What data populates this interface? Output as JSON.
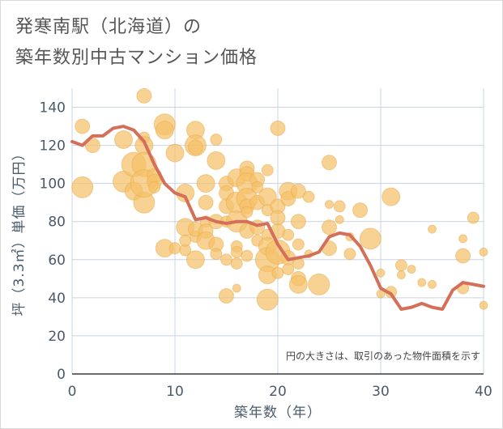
{
  "title_lines": [
    "発寒南駅（北海道）の",
    "築年数別中古マンション価格"
  ],
  "chart_data": {
    "type": "scatter",
    "xlabel": "築年数（年）",
    "ylabel": "坪（3.3㎡）単価（万円）",
    "xlim": [
      0,
      40
    ],
    "ylim": [
      0,
      150
    ],
    "xticks": [
      0,
      10,
      20,
      30,
      40
    ],
    "yticks": [
      0,
      20,
      40,
      60,
      80,
      100,
      120,
      140
    ],
    "grid": true,
    "annotation": "円の大きさは、取引のあった物件面積を示す",
    "colors": {
      "bubble": "#f5c06a",
      "bubble_edge": "#e6a94a",
      "line": "#d4705a",
      "axis_text": "#4a5a6a",
      "grid": "#c9d4e3"
    },
    "series": [
      {
        "kind": "bubbles",
        "points": [
          [
            1,
            130,
            9
          ],
          [
            1,
            98,
            13
          ],
          [
            2,
            120,
            9
          ],
          [
            5,
            123,
            11
          ],
          [
            5,
            101,
            13
          ],
          [
            6,
            110,
            15
          ],
          [
            6,
            96,
            11
          ],
          [
            7,
            146,
            9
          ],
          [
            7,
            124,
            7
          ],
          [
            7,
            120,
            11
          ],
          [
            7,
            110,
            15
          ],
          [
            7,
            90,
            13
          ],
          [
            7,
            100,
            17
          ],
          [
            8,
            104,
            9
          ],
          [
            8,
            101,
            9
          ],
          [
            8,
            98,
            7
          ],
          [
            9,
            131,
            13
          ],
          [
            9,
            128,
            11
          ],
          [
            9,
            66,
            11
          ],
          [
            10,
            116,
            11
          ],
          [
            10,
            66,
            7
          ],
          [
            11,
            95,
            11
          ],
          [
            11,
            77,
            11
          ],
          [
            11,
            65,
            7
          ],
          [
            11,
            70,
            7
          ],
          [
            12,
            128,
            11
          ],
          [
            12,
            120,
            13
          ],
          [
            12,
            119,
            9
          ],
          [
            12,
            60,
            11
          ],
          [
            12,
            72,
            7
          ],
          [
            12,
            76,
            9
          ],
          [
            13,
            100,
            11
          ],
          [
            13,
            90,
            9
          ],
          [
            13,
            80,
            7
          ],
          [
            13,
            75,
            9
          ],
          [
            13,
            70,
            11
          ],
          [
            14,
            123,
            7
          ],
          [
            14,
            112,
            11
          ],
          [
            14,
            80,
            9
          ],
          [
            14,
            68,
            9
          ],
          [
            14,
            63,
            7
          ],
          [
            15,
            100,
            9
          ],
          [
            15,
            95,
            9
          ],
          [
            15,
            88,
            9
          ],
          [
            15,
            80,
            7
          ],
          [
            15,
            60,
            7
          ],
          [
            15,
            41,
            9
          ],
          [
            16,
            103,
            11
          ],
          [
            16,
            90,
            13
          ],
          [
            16,
            80,
            13
          ],
          [
            16,
            67,
            7
          ],
          [
            16,
            64,
            7
          ],
          [
            16,
            58,
            7
          ],
          [
            16,
            45,
            5
          ],
          [
            17,
            108,
            9
          ],
          [
            17,
            105,
            9
          ],
          [
            17,
            100,
            13
          ],
          [
            17,
            92,
            13
          ],
          [
            17,
            88,
            9
          ],
          [
            17,
            85,
            7
          ],
          [
            17,
            75,
            9
          ],
          [
            17,
            62,
            7
          ],
          [
            18,
            102,
            9
          ],
          [
            18,
            98,
            7
          ],
          [
            18,
            90,
            9
          ],
          [
            18,
            77,
            9
          ],
          [
            18,
            70,
            7
          ],
          [
            19,
            107,
            7
          ],
          [
            19,
            93,
            11
          ],
          [
            19,
            86,
            7
          ],
          [
            19,
            73,
            7
          ],
          [
            19,
            67,
            11
          ],
          [
            19,
            60,
            15
          ],
          [
            19,
            52,
            11
          ],
          [
            19,
            39,
            13
          ],
          [
            20,
            129,
            9
          ],
          [
            20,
            88,
            9
          ],
          [
            20,
            82,
            9
          ],
          [
            20,
            75,
            9
          ],
          [
            20,
            64,
            15
          ],
          [
            20,
            53,
            7
          ],
          [
            21,
            96,
            11
          ],
          [
            21,
            92,
            9
          ],
          [
            21,
            73,
            7
          ],
          [
            21,
            61,
            9
          ],
          [
            21,
            55,
            7
          ],
          [
            22,
            96,
            9
          ],
          [
            22,
            80,
            9
          ],
          [
            22,
            68,
            7
          ],
          [
            22,
            58,
            7
          ],
          [
            22,
            50,
            9
          ],
          [
            22,
            47,
            11
          ],
          [
            23,
            93,
            7
          ],
          [
            23,
            63,
            5
          ],
          [
            24,
            47,
            13
          ],
          [
            25,
            111,
            9
          ],
          [
            25,
            89,
            5
          ],
          [
            25,
            66,
            9
          ],
          [
            25,
            77,
            9
          ],
          [
            26,
            88,
            7
          ],
          [
            26,
            81,
            5
          ],
          [
            27,
            63,
            7
          ],
          [
            27,
            72,
            5
          ],
          [
            28,
            86,
            9
          ],
          [
            29,
            71,
            13
          ],
          [
            30,
            42,
            5
          ],
          [
            30,
            53,
            5
          ],
          [
            31,
            93,
            11
          ],
          [
            31,
            43,
            7
          ],
          [
            32,
            57,
            7
          ],
          [
            32,
            52,
            5
          ],
          [
            33,
            55,
            5
          ],
          [
            34,
            48,
            5
          ],
          [
            35,
            76,
            5
          ],
          [
            35,
            47,
            5
          ],
          [
            38,
            71,
            5
          ],
          [
            38,
            62,
            9
          ],
          [
            38,
            45,
            7
          ],
          [
            39,
            82,
            7
          ],
          [
            40,
            64,
            5
          ],
          [
            40,
            36,
            5
          ]
        ]
      },
      {
        "kind": "line",
        "points": [
          [
            0,
            122
          ],
          [
            1,
            120
          ],
          [
            2,
            125
          ],
          [
            3,
            125
          ],
          [
            4,
            129
          ],
          [
            5,
            130
          ],
          [
            6,
            128
          ],
          [
            7,
            122
          ],
          [
            8,
            110
          ],
          [
            9,
            100
          ],
          [
            10,
            95
          ],
          [
            11,
            93
          ],
          [
            12,
            81
          ],
          [
            13,
            82
          ],
          [
            14,
            80
          ],
          [
            15,
            79
          ],
          [
            16,
            80
          ],
          [
            17,
            80
          ],
          [
            18,
            78
          ],
          [
            19,
            79
          ],
          [
            20,
            68
          ],
          [
            21,
            60
          ],
          [
            22,
            61
          ],
          [
            23,
            62
          ],
          [
            24,
            64
          ],
          [
            25,
            72
          ],
          [
            26,
            74
          ],
          [
            27,
            73
          ],
          [
            28,
            67
          ],
          [
            29,
            57
          ],
          [
            30,
            45
          ],
          [
            31,
            42
          ],
          [
            32,
            34
          ],
          [
            33,
            35
          ],
          [
            34,
            37
          ],
          [
            35,
            35
          ],
          [
            36,
            34
          ],
          [
            37,
            44
          ],
          [
            38,
            48
          ],
          [
            39,
            47
          ],
          [
            40,
            46
          ]
        ]
      }
    ]
  }
}
